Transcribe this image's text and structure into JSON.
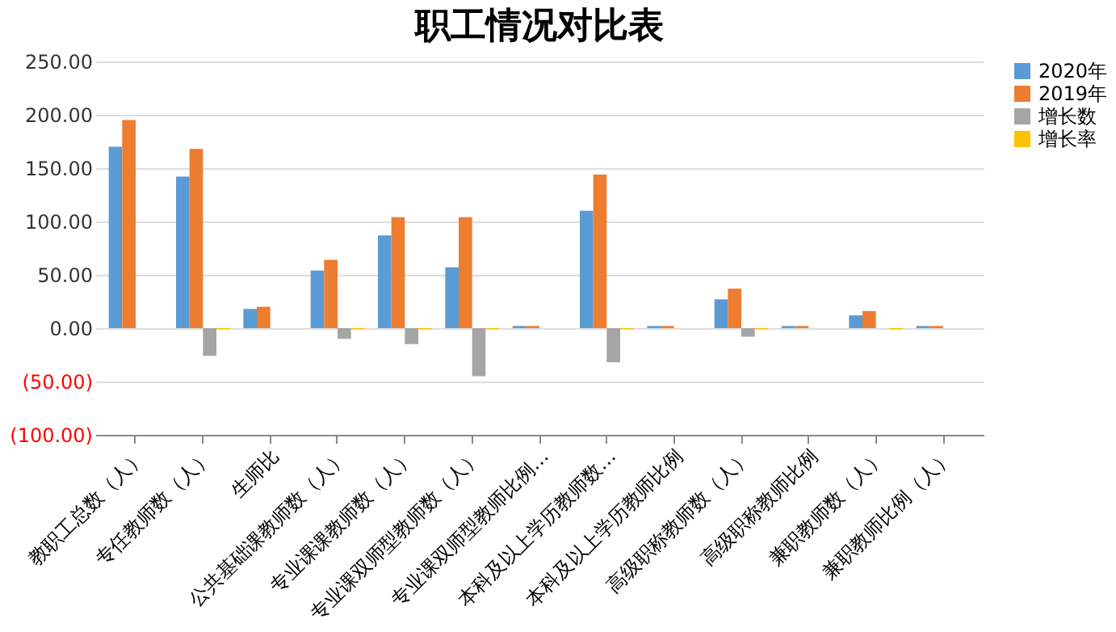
{
  "chart_data": {
    "type": "bar",
    "title": "职工情况对比表",
    "categories": [
      "教职工总数（人）",
      "专任教师数（人）",
      "生师比",
      "公共基础课教师数（人）",
      "专业课课教师数（人）",
      "专业课双师型教师数（人）",
      "专业课双师型教师比例…",
      "本科及以上学历教师数…",
      "本科及以上学历教师比例",
      "高级职称教师数（人）",
      "高级职称教师比例",
      "兼职教师数（人）",
      "兼职教师比例（人）"
    ],
    "series": [
      {
        "name": "2020年",
        "color": "#5b9bd5",
        "values": [
          170,
          142,
          18,
          54,
          87,
          57,
          2,
          110,
          2,
          27,
          2,
          12,
          2
        ]
      },
      {
        "name": "2019年",
        "color": "#ed7d31",
        "values": [
          195,
          168,
          20,
          64,
          104,
          104,
          2,
          144,
          2,
          37,
          2,
          16,
          2
        ]
      },
      {
        "name": "增长数",
        "color": "#a5a5a5",
        "values": [
          null,
          -26,
          null,
          -10,
          -15,
          -45,
          null,
          -32,
          null,
          -8,
          null,
          null,
          null
        ]
      },
      {
        "name": "增长率",
        "color": "#ffc000",
        "values": [
          null,
          -1,
          null,
          -1,
          -1,
          -1,
          null,
          -1,
          null,
          -1,
          null,
          -1,
          null
        ]
      }
    ],
    "ylim": [
      -100,
      250
    ],
    "yticks": [
      {
        "value": -100,
        "label": "(100.00)"
      },
      {
        "value": -50,
        "label": "(50.00)"
      },
      {
        "value": 0,
        "label": "0.00"
      },
      {
        "value": 50,
        "label": "50.00"
      },
      {
        "value": 100,
        "label": "100.00"
      },
      {
        "value": 150,
        "label": "150.00"
      },
      {
        "value": 200,
        "label": "200.00"
      },
      {
        "value": 250,
        "label": "250.00"
      }
    ],
    "grid": "y",
    "legend": "right"
  }
}
